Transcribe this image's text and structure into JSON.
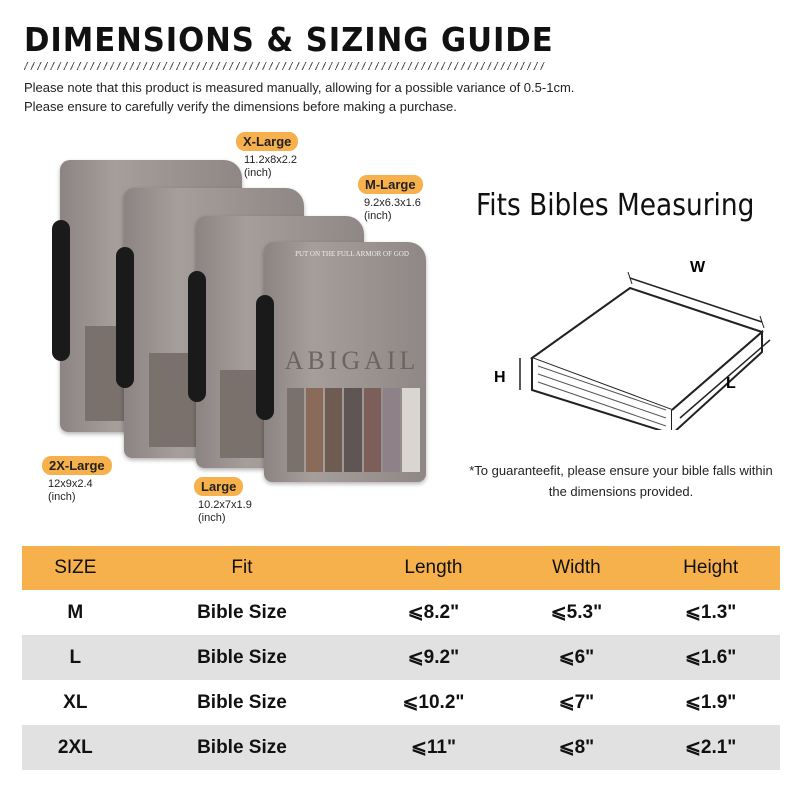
{
  "header": {
    "title": "DIMENSIONS & SIZING GUIDE",
    "note_1": "Please note that this product is measured manually, allowing for a possible variance of 0.5-1cm.",
    "note_2": "Please ensure to carefully verify the dimensions before making a purchase."
  },
  "products": [
    {
      "label": "X-Large",
      "dims": "11.2x8x2.2",
      "unit": "(inch)"
    },
    {
      "label": "M-Large",
      "dims": "9.2x6.3x1.6",
      "unit": "(inch)"
    },
    {
      "label": "2X-Large",
      "dims": "12x9x2.4",
      "unit": "(inch)"
    },
    {
      "label": "Large",
      "dims": "10.2x7x1.9",
      "unit": "(inch)"
    }
  ],
  "product_image_lettering": [
    "PUT ON THE FULL ARMOR OF GOD",
    "ABIGAIL"
  ],
  "diagram": {
    "title": "Fits Bibles Measuring",
    "w": "W",
    "h": "H",
    "l": "L",
    "note": "*To guaranteefit, please ensure your bible falls within the dimensions provided."
  },
  "colors": {
    "accent": "#F7B14C",
    "row_alt": "#E1E1E1"
  },
  "table": {
    "headers": [
      "SIZE",
      "Fit",
      "Length",
      "Width",
      "Height"
    ],
    "rows": [
      [
        "M",
        "Bible Size",
        "⩽8.2\"",
        "⩽5.3\"",
        "⩽1.3\""
      ],
      [
        "L",
        "Bible Size",
        "⩽9.2\"",
        "⩽6\"",
        "⩽1.6\""
      ],
      [
        "XL",
        "Bible Size",
        "⩽10.2\"",
        "⩽7\"",
        "⩽1.9\""
      ],
      [
        "2XL",
        "Bible Size",
        "⩽11\"",
        "⩽8\"",
        "⩽2.1\""
      ]
    ]
  }
}
